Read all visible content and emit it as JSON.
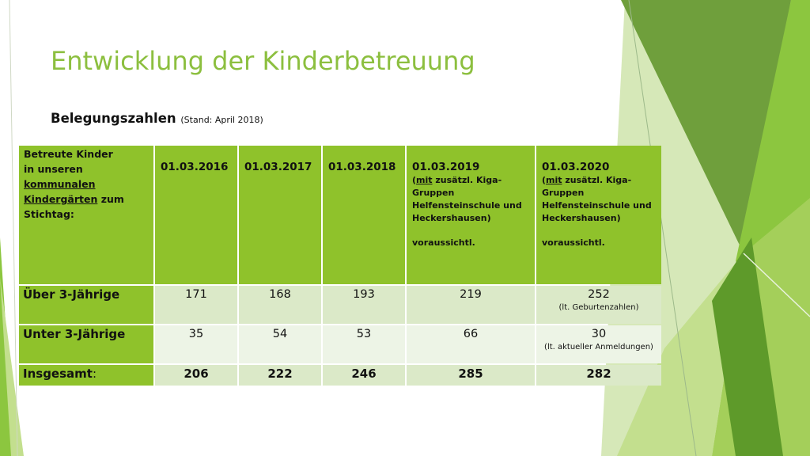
{
  "slide": {
    "title": "Entwicklung der Kinderbetreuung",
    "subtitle": "Belegungszahlen",
    "subtitle_note": "(Stand: April 2018)"
  },
  "table": {
    "header": {
      "label_lines": [
        "Betreute Kinder",
        "in unseren",
        "kommunalen",
        "Kindergärten",
        " zum",
        "Stichtag:"
      ],
      "dates": [
        "01.03.2016",
        "01.03.2017",
        "01.03.2018"
      ],
      "proj": [
        {
          "date": "01.03.2019",
          "note_open": "(",
          "note_mit": "mit",
          "note_rest": " zusätzl. Kiga-",
          "note_line2": "Gruppen",
          "note_line3": "Helfensteinschule und",
          "note_line4": "Heckershausen)",
          "note_extra": "voraussichtl."
        },
        {
          "date": "01.03.2020",
          "note_open": "(",
          "note_mit": "mit",
          "note_rest": " zusätzl. Kiga-",
          "note_line2": "Gruppen",
          "note_line3": "Helfensteinschule und",
          "note_line4": "Heckershausen)",
          "note_extra": "voraussichtl."
        }
      ]
    },
    "rows": [
      {
        "label": "Über 3-Jährige",
        "values": [
          "171",
          "168",
          "193",
          "219",
          "252"
        ],
        "note": "(lt. Geburtenzahlen)"
      },
      {
        "label": "Unter 3-Jährige",
        "values": [
          "35",
          "54",
          "53",
          "66",
          "30"
        ],
        "note": "(lt. aktueller Anmeldungen)"
      },
      {
        "label": "Insgesamt",
        "label_suffix": ":",
        "values": [
          "206",
          "222",
          "246",
          "285",
          "282"
        ]
      }
    ]
  },
  "colors": {
    "accent": "#8fc22b",
    "title": "#8cbf3f",
    "cell_light": "#edf4e6",
    "cell_mid": "#dbe9c8"
  }
}
